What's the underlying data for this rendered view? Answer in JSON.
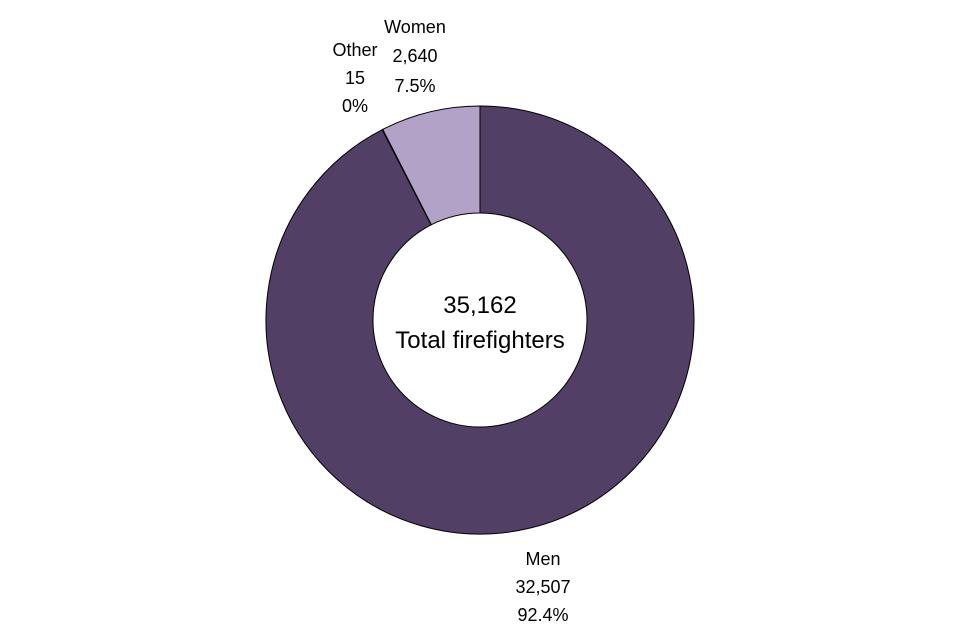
{
  "chart_data": {
    "type": "pie",
    "variant": "donut",
    "center": {
      "value": "35,162",
      "caption": "Total firefighters"
    },
    "slices": [
      {
        "name": "Men",
        "value": 32507,
        "value_label": "32,507",
        "percent_label": "92.4%",
        "color": "#523f66"
      },
      {
        "name": "Other",
        "value": 15,
        "value_label": "15",
        "percent_label": "0%",
        "color": "#1a1a1a"
      },
      {
        "name": "Women",
        "value": 2640,
        "value_label": "2,640",
        "percent_label": "7.5%",
        "color": "#b3a2c7"
      }
    ],
    "title": "",
    "legend": "none"
  }
}
